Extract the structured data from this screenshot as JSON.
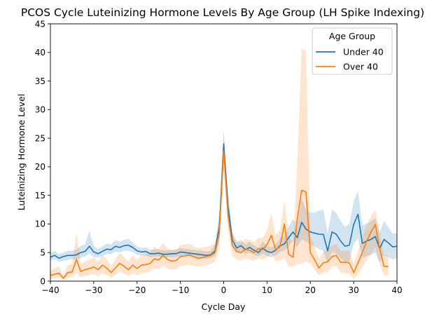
{
  "chart_data": {
    "type": "line",
    "title": "PCOS Cycle Luteinizing Hormone Levels By Age Group (LH Spike Indexing)",
    "xlabel": "Cycle Day",
    "ylabel": "Luteinizing Hormone Level",
    "xlim": [
      -40,
      40
    ],
    "ylim": [
      0,
      45
    ],
    "xticks": [
      -40,
      -30,
      -20,
      -10,
      0,
      10,
      20,
      30,
      40
    ],
    "xtick_labels": [
      "−40",
      "−30",
      "−20",
      "−10",
      "0",
      "10",
      "20",
      "30",
      "40"
    ],
    "yticks": [
      0,
      5,
      10,
      15,
      20,
      25,
      30,
      35,
      40,
      45
    ],
    "ytick_labels": [
      "0",
      "5",
      "10",
      "15",
      "20",
      "25",
      "30",
      "35",
      "40",
      "45"
    ],
    "grid": false,
    "legend": {
      "title": "Age Group",
      "placement": "top-right"
    },
    "series": [
      {
        "name": "Under 40",
        "color": "#1f77b4",
        "x": [
          -40,
          -39,
          -38,
          -37,
          -36,
          -35,
          -34,
          -33,
          -32,
          -31,
          -30,
          -29,
          -28,
          -27,
          -26,
          -25,
          -24,
          -23,
          -22,
          -21,
          -20,
          -19,
          -18,
          -17,
          -16,
          -15,
          -14,
          -13,
          -12,
          -11,
          -10,
          -9,
          -8,
          -7,
          -6,
          -5,
          -4,
          -3,
          -2,
          -1,
          0,
          1,
          2,
          3,
          4,
          5,
          6,
          7,
          8,
          9,
          10,
          11,
          12,
          13,
          14,
          15,
          16,
          17,
          18,
          19,
          20,
          21,
          22,
          23,
          24,
          25,
          26,
          27,
          28,
          29,
          30,
          31,
          32,
          33,
          34,
          35,
          36,
          37,
          38,
          39,
          40
        ],
        "y": [
          4.2,
          4.5,
          4.0,
          4.3,
          4.5,
          4.5,
          4.6,
          5.0,
          5.2,
          6.1,
          5.1,
          4.8,
          5.2,
          5.6,
          5.5,
          6.1,
          5.9,
          6.2,
          6.3,
          5.9,
          5.3,
          5.1,
          5.2,
          4.8,
          4.8,
          4.9,
          4.7,
          4.7,
          4.8,
          4.8,
          5.1,
          5.0,
          4.9,
          4.8,
          4.7,
          4.6,
          4.5,
          4.6,
          5.3,
          9.5,
          24.0,
          13.0,
          7.2,
          5.8,
          6.2,
          5.5,
          5.9,
          5.4,
          5.0,
          5.8,
          5.2,
          5.0,
          5.4,
          6.2,
          6.5,
          7.6,
          8.6,
          7.6,
          10.3,
          9.1,
          8.6,
          8.4,
          8.2,
          8.2,
          5.3,
          8.6,
          8.2,
          7.0,
          6.1,
          6.3,
          9.9,
          11.7,
          6.6,
          7.0,
          7.3,
          7.8,
          5.7,
          7.3,
          6.7,
          6.0,
          6.1
        ],
        "ci_lower": [
          3.6,
          3.8,
          3.4,
          3.5,
          3.7,
          3.8,
          3.8,
          4.1,
          4.3,
          4.8,
          4.2,
          4.1,
          4.4,
          4.7,
          4.7,
          5.2,
          5.0,
          5.3,
          5.3,
          5.1,
          4.6,
          4.5,
          4.5,
          4.2,
          4.2,
          4.3,
          4.1,
          4.1,
          4.2,
          4.2,
          4.4,
          4.4,
          4.3,
          4.2,
          4.1,
          4.0,
          3.9,
          4.0,
          4.4,
          7.0,
          21.5,
          10.5,
          6.0,
          4.9,
          5.3,
          4.7,
          5.0,
          4.6,
          4.3,
          4.8,
          4.4,
          4.2,
          4.5,
          5.1,
          5.3,
          6.2,
          6.9,
          6.0,
          7.3,
          6.9,
          6.4,
          6.0,
          5.6,
          5.3,
          3.0,
          5.2,
          4.8,
          4.0,
          3.3,
          3.4,
          6.5,
          7.5,
          4.0,
          4.4,
          4.6,
          5.0,
          3.3,
          4.5,
          4.2,
          3.8,
          4.0
        ],
        "ci_upper": [
          4.9,
          5.3,
          4.7,
          5.0,
          5.3,
          5.3,
          5.5,
          6.2,
          6.4,
          8.8,
          6.2,
          5.6,
          6.1,
          6.6,
          6.4,
          7.2,
          6.9,
          7.2,
          7.4,
          6.8,
          6.1,
          5.8,
          5.9,
          5.5,
          5.5,
          5.6,
          5.4,
          5.4,
          5.5,
          5.5,
          5.8,
          5.7,
          5.6,
          5.5,
          5.4,
          5.3,
          5.2,
          5.3,
          6.4,
          12.0,
          26.5,
          15.5,
          8.6,
          6.8,
          7.2,
          6.4,
          6.9,
          6.3,
          5.8,
          7.0,
          6.1,
          5.9,
          6.4,
          7.5,
          8.0,
          9.5,
          10.8,
          9.8,
          14.5,
          12.5,
          12.0,
          12.0,
          12.3,
          12.5,
          8.3,
          12.5,
          12.0,
          10.5,
          9.5,
          10.0,
          14.0,
          15.8,
          9.8,
          10.0,
          10.5,
          11.0,
          8.5,
          10.5,
          9.5,
          8.3,
          8.4
        ]
      },
      {
        "name": "Over 40",
        "color": "#ff7f0e",
        "x": [
          -40,
          -39,
          -38,
          -37,
          -36,
          -35,
          -34,
          -33,
          -32,
          -31,
          -30,
          -29,
          -28,
          -27,
          -26,
          -25,
          -24,
          -23,
          -22,
          -21,
          -20,
          -19,
          -18,
          -17,
          -16,
          -15,
          -14,
          -13,
          -12,
          -11,
          -10,
          -9,
          -8,
          -7,
          -6,
          -5,
          -4,
          -3,
          -2,
          -1,
          0,
          1,
          2,
          3,
          4,
          5,
          6,
          7,
          8,
          9,
          10,
          11,
          12,
          13,
          14,
          15,
          16,
          17,
          18,
          19,
          20,
          21,
          22,
          23,
          24,
          25,
          26,
          27,
          28,
          29,
          30,
          31,
          32,
          33,
          34,
          35,
          36,
          37,
          38
        ],
        "y": [
          1.0,
          1.2,
          1.4,
          0.5,
          1.5,
          1.6,
          3.8,
          1.7,
          2.0,
          2.2,
          2.5,
          2.0,
          2.8,
          2.3,
          1.5,
          2.3,
          3.1,
          2.6,
          2.0,
          2.8,
          2.2,
          2.8,
          2.9,
          3.1,
          3.9,
          3.7,
          4.5,
          3.8,
          3.5,
          3.6,
          4.3,
          4.4,
          4.6,
          4.3,
          4.0,
          4.1,
          4.3,
          4.5,
          5.0,
          8.5,
          22.8,
          11.5,
          6.2,
          5.2,
          5.0,
          5.6,
          5.4,
          5.0,
          5.7,
          5.5,
          6.4,
          8.0,
          5.5,
          6.0,
          10.0,
          4.7,
          4.2,
          11.0,
          15.9,
          15.6,
          5.0,
          3.7,
          2.3,
          3.2,
          3.4,
          4.3,
          4.5,
          3.3,
          3.3,
          3.2,
          1.5,
          3.2,
          5.0,
          7.0,
          8.6,
          9.9,
          5.7,
          2.6,
          2.6
        ],
        "ci_lower": [
          0.4,
          0.5,
          0.6,
          0.2,
          0.6,
          0.7,
          1.5,
          0.7,
          0.9,
          1.0,
          1.2,
          0.9,
          1.4,
          1.1,
          0.6,
          1.1,
          1.6,
          1.3,
          0.9,
          1.4,
          1.0,
          1.4,
          1.5,
          1.7,
          2.2,
          2.1,
          2.7,
          2.2,
          2.0,
          2.1,
          2.6,
          2.7,
          2.9,
          2.7,
          2.5,
          2.6,
          2.8,
          3.0,
          3.5,
          6.0,
          20.0,
          9.0,
          4.5,
          3.7,
          3.6,
          4.0,
          3.8,
          3.5,
          4.0,
          3.8,
          4.2,
          5.0,
          3.5,
          3.6,
          4.0,
          2.5,
          2.5,
          3.0,
          3.0,
          3.5,
          3.0,
          2.0,
          1.0,
          1.5,
          1.6,
          2.5,
          2.6,
          1.5,
          1.4,
          1.3,
          0.4,
          1.2,
          2.4,
          3.6,
          4.8,
          6.0,
          3.0,
          1.0,
          1.0
        ],
        "ci_upper": [
          1.8,
          2.3,
          2.6,
          1.0,
          2.8,
          3.0,
          8.5,
          3.0,
          3.4,
          3.8,
          4.2,
          3.4,
          4.6,
          3.8,
          2.7,
          3.8,
          5.0,
          4.2,
          3.4,
          4.6,
          3.7,
          4.6,
          4.7,
          5.0,
          6.0,
          5.6,
          6.7,
          5.8,
          5.4,
          5.5,
          6.3,
          6.4,
          6.6,
          6.1,
          5.8,
          5.9,
          6.0,
          6.2,
          6.8,
          11.0,
          25.5,
          14.0,
          8.2,
          7.0,
          6.7,
          7.4,
          7.2,
          6.8,
          7.6,
          7.5,
          9.0,
          12.0,
          8.0,
          9.0,
          14.0,
          8.0,
          6.5,
          21.0,
          40.7,
          40.3,
          8.0,
          6.0,
          4.0,
          5.2,
          5.5,
          6.3,
          6.5,
          5.3,
          5.3,
          5.3,
          3.0,
          5.4,
          7.6,
          9.8,
          11.4,
          12.5,
          8.6,
          4.5,
          4.5
        ]
      }
    ]
  }
}
